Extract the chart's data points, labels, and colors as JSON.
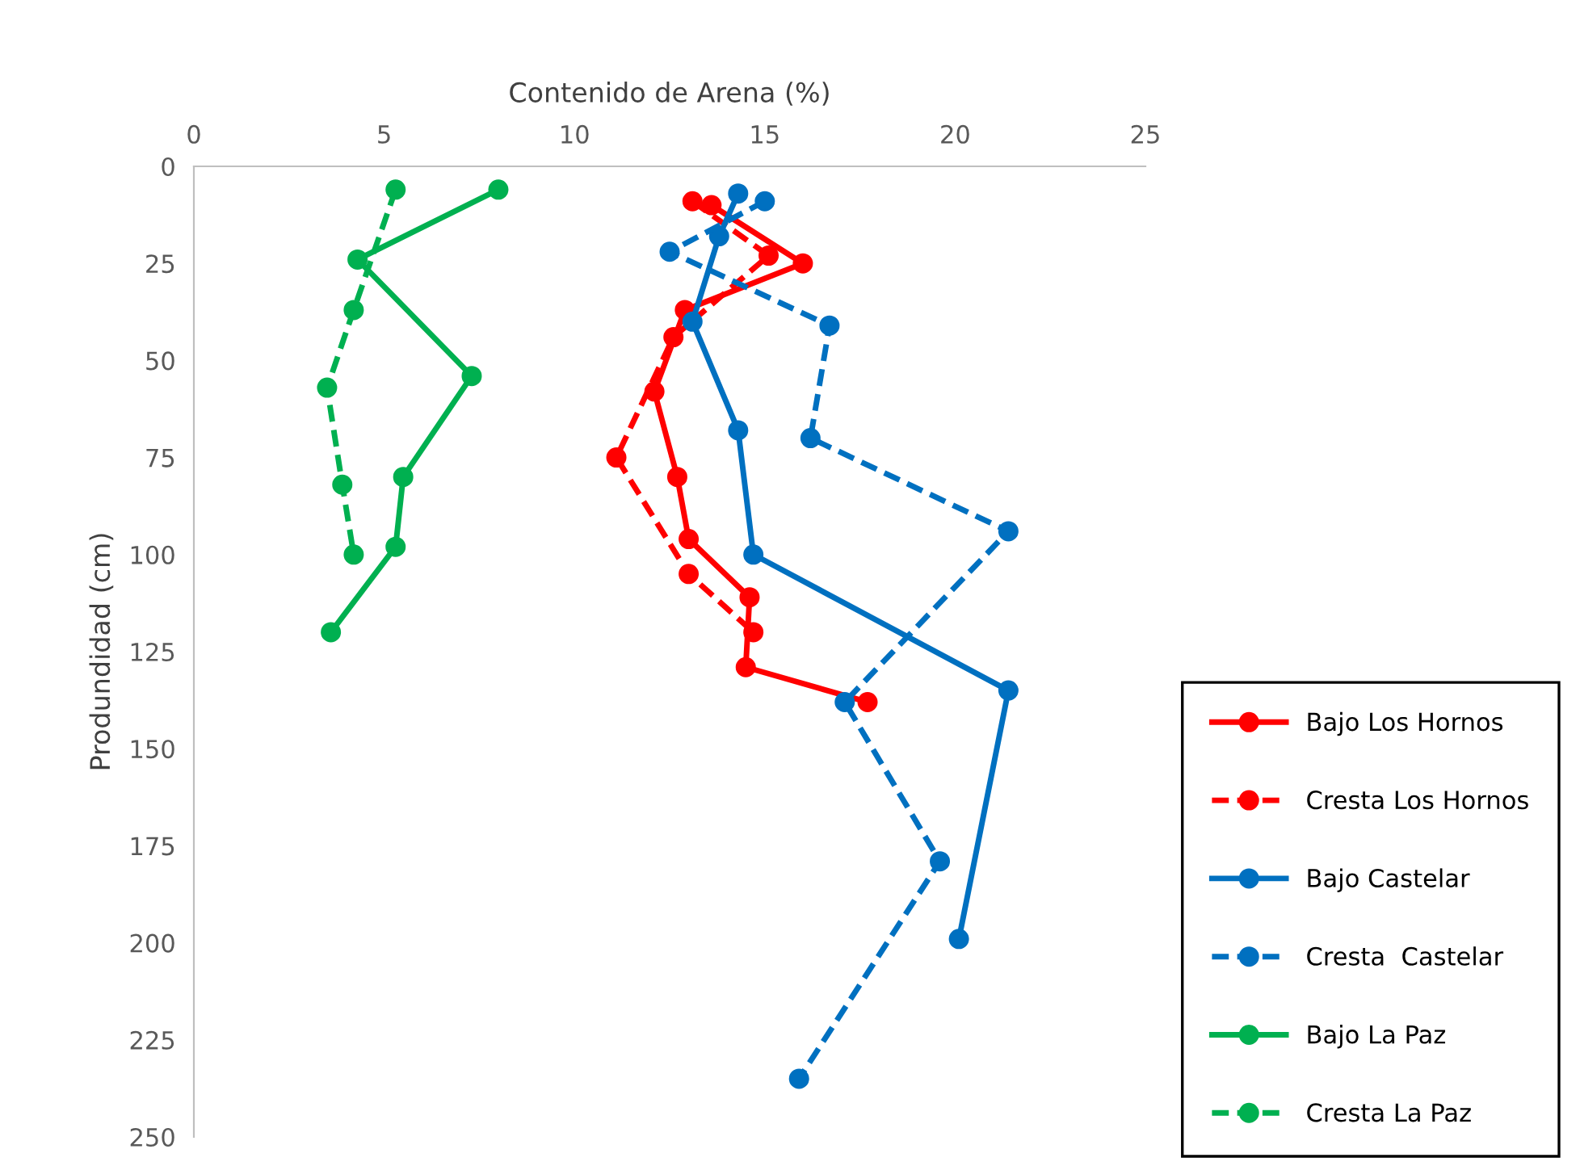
{
  "chart_data": {
    "type": "line",
    "xlabel": "Contenido de Arena (%)",
    "ylabel": "Produndidad (cm)",
    "xlim": [
      0,
      25
    ],
    "xticks": [
      0,
      5,
      10,
      15,
      20,
      25
    ],
    "ylim": [
      250,
      0
    ],
    "yticks": [
      0,
      25,
      50,
      75,
      100,
      125,
      150,
      175,
      200,
      225,
      250
    ],
    "grid": false,
    "legend": "bottom right",
    "marker": "circle",
    "series": [
      {
        "name": "Bajo Los Hornos",
        "color": "#ff0000",
        "line_style": "solid",
        "x": [
          13.6,
          16.0,
          12.9,
          12.1,
          12.7,
          13.0,
          14.6,
          14.5,
          17.7
        ],
        "values": [
          10,
          25,
          37,
          58,
          80,
          96,
          111,
          129,
          138
        ]
      },
      {
        "name": "Cresta Los Hornos",
        "color": "#ff0000",
        "line_style": "dashed",
        "x": [
          13.1,
          15.1,
          12.6,
          11.1,
          13.0,
          14.7
        ],
        "values": [
          9,
          23,
          44,
          75,
          105,
          120
        ]
      },
      {
        "name": "Bajo Castelar",
        "color": "#0070c0",
        "line_style": "solid",
        "x": [
          14.3,
          13.8,
          13.1,
          14.3,
          14.7,
          21.4,
          20.1
        ],
        "values": [
          7,
          18,
          40,
          68,
          100,
          135,
          199
        ]
      },
      {
        "name": "Cresta  Castelar",
        "color": "#0070c0",
        "line_style": "dashed",
        "x": [
          15.0,
          12.5,
          16.7,
          16.2,
          21.4,
          17.1,
          19.6,
          15.9
        ],
        "values": [
          9,
          22,
          41,
          70,
          94,
          138,
          179,
          235
        ]
      },
      {
        "name": "Bajo La Paz",
        "color": "#00b050",
        "line_style": "solid",
        "x": [
          8.0,
          4.3,
          7.3,
          5.5,
          5.3,
          3.6
        ],
        "values": [
          6,
          24,
          54,
          80,
          98,
          120
        ]
      },
      {
        "name": "Cresta La Paz",
        "color": "#00b050",
        "line_style": "dashed",
        "x": [
          5.3,
          4.2,
          3.5,
          3.9,
          4.2
        ],
        "values": [
          6,
          37,
          57,
          82,
          100
        ]
      }
    ]
  }
}
